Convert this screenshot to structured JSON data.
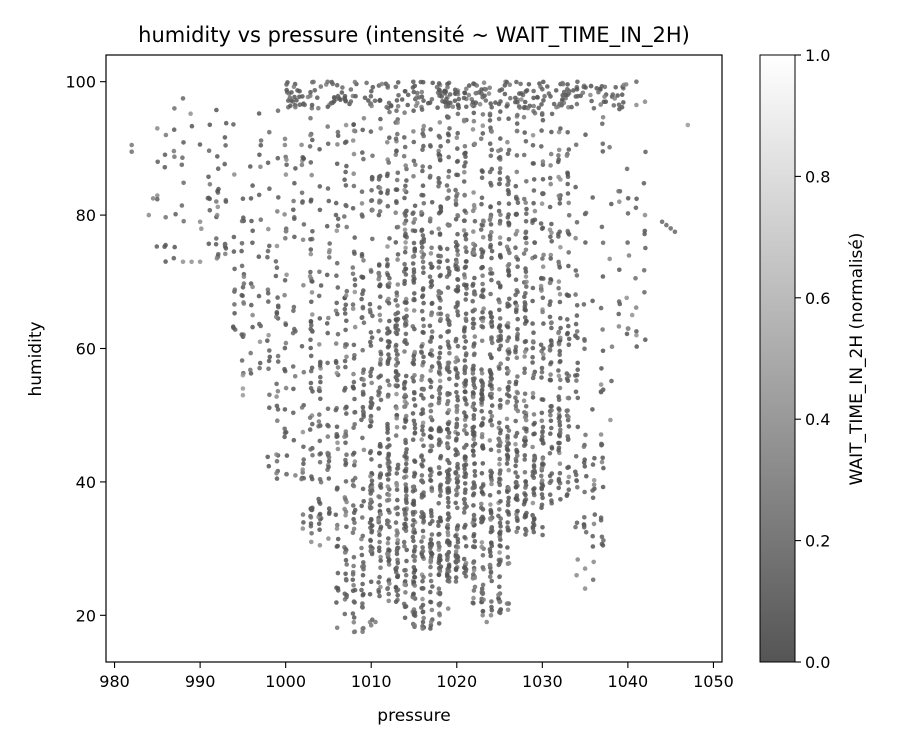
{
  "chart_data": {
    "type": "scatter",
    "title": "humidity vs pressure (intensité ~ WAIT_TIME_IN_2H)",
    "xlabel": "pressure",
    "ylabel": "humidity",
    "xlim": [
      979,
      1051
    ],
    "ylim": [
      13,
      104
    ],
    "xticks": [
      980,
      990,
      1000,
      1010,
      1020,
      1030,
      1040,
      1050
    ],
    "yticks": [
      20,
      40,
      60,
      80,
      100
    ],
    "grid": false,
    "colorbar": {
      "label": "WAIT_TIME_IN_2H (normalisé)",
      "range": [
        0,
        1
      ],
      "ticks": [
        0.0,
        0.2,
        0.4,
        0.6,
        0.8,
        1.0
      ],
      "tick_labels": [
        "0.0",
        "0.2",
        "0.4",
        "0.6",
        "0.8",
        "1.0"
      ],
      "color_low": "#555555",
      "color_high": "#ffffff"
    },
    "marker_alpha": 0.85,
    "density_profile": [
      {
        "x": 1008,
        "ymin": 17,
        "ymax": 100,
        "weight": 1.6
      },
      {
        "x": 1012,
        "ymin": 22,
        "ymax": 100,
        "weight": 2.4
      },
      {
        "x": 1016,
        "ymin": 18,
        "ymax": 100,
        "weight": 2.8
      },
      {
        "x": 1020,
        "ymin": 25,
        "ymax": 100,
        "weight": 3.0
      },
      {
        "x": 1024,
        "ymin": 20,
        "ymax": 100,
        "weight": 2.6
      },
      {
        "x": 1028,
        "ymin": 32,
        "ymax": 100,
        "weight": 2.0
      },
      {
        "x": 1032,
        "ymin": 36,
        "ymax": 100,
        "weight": 1.4
      },
      {
        "x": 1004,
        "ymin": 32,
        "ymax": 99,
        "weight": 1.0
      },
      {
        "x": 1000,
        "ymin": 40,
        "ymax": 98,
        "weight": 0.6
      },
      {
        "x": 996,
        "ymin": 55,
        "ymax": 97,
        "weight": 0.4
      },
      {
        "x": 1036,
        "ymin": 25,
        "ymax": 100,
        "weight": 0.5
      },
      {
        "x": 992,
        "ymin": 73,
        "ymax": 97,
        "weight": 0.25
      },
      {
        "x": 987,
        "ymin": 73,
        "ymax": 97,
        "weight": 0.15
      },
      {
        "x": 1040,
        "ymin": 60,
        "ymax": 100,
        "weight": 0.2
      }
    ],
    "points": [
      {
        "x": 982,
        "y": 90.5,
        "v": 0.2
      },
      {
        "x": 982,
        "y": 89.5,
        "v": 0.15
      },
      {
        "x": 984,
        "y": 80,
        "v": 0.3
      },
      {
        "x": 984.5,
        "y": 82.5,
        "v": 0.25
      },
      {
        "x": 985,
        "y": 93,
        "v": 0.3
      },
      {
        "x": 986,
        "y": 92,
        "v": 0.2
      },
      {
        "x": 987,
        "y": 96,
        "v": 0.15
      },
      {
        "x": 988,
        "y": 97.5,
        "v": 0.1
      },
      {
        "x": 988,
        "y": 73,
        "v": 0.35
      },
      {
        "x": 989,
        "y": 73,
        "v": 0.35
      },
      {
        "x": 990,
        "y": 73,
        "v": 0.35
      },
      {
        "x": 990,
        "y": 79,
        "v": 0.3
      },
      {
        "x": 992,
        "y": 80,
        "v": 0.3
      },
      {
        "x": 995,
        "y": 54,
        "v": 0.4
      },
      {
        "x": 995,
        "y": 53,
        "v": 0.4
      },
      {
        "x": 995,
        "y": 56,
        "v": 0.4
      },
      {
        "x": 998,
        "y": 62,
        "v": 0.35
      },
      {
        "x": 997,
        "y": 61,
        "v": 0.35
      },
      {
        "x": 1002,
        "y": 33,
        "v": 0.3
      },
      {
        "x": 1003,
        "y": 31,
        "v": 0.3
      },
      {
        "x": 1004,
        "y": 30.5,
        "v": 0.3
      },
      {
        "x": 1005,
        "y": 31.5,
        "v": 0.3
      },
      {
        "x": 1006,
        "y": 33,
        "v": 0.3
      },
      {
        "x": 1007,
        "y": 35,
        "v": 0.3
      },
      {
        "x": 1008,
        "y": 17.5,
        "v": 0.2
      },
      {
        "x": 1009,
        "y": 18,
        "v": 0.2
      },
      {
        "x": 1010,
        "y": 18.5,
        "v": 0.2
      },
      {
        "x": 1010.5,
        "y": 19,
        "v": 0.2
      },
      {
        "x": 1016,
        "y": 18,
        "v": 0.25
      },
      {
        "x": 1017,
        "y": 19,
        "v": 0.25
      },
      {
        "x": 1018,
        "y": 20,
        "v": 0.25
      },
      {
        "x": 1019,
        "y": 21,
        "v": 0.25
      },
      {
        "x": 1023.5,
        "y": 19,
        "v": 0.25
      },
      {
        "x": 1024,
        "y": 20,
        "v": 0.25
      },
      {
        "x": 1025,
        "y": 22,
        "v": 0.25
      },
      {
        "x": 1034,
        "y": 26,
        "v": 0.3
      },
      {
        "x": 1035,
        "y": 27,
        "v": 0.3
      },
      {
        "x": 1035,
        "y": 24,
        "v": 0.3
      },
      {
        "x": 1036,
        "y": 28,
        "v": 0.3
      },
      {
        "x": 1040,
        "y": 63,
        "v": 0.35
      },
      {
        "x": 1041,
        "y": 62,
        "v": 0.35
      },
      {
        "x": 1040.5,
        "y": 65,
        "v": 0.35
      },
      {
        "x": 1044,
        "y": 79,
        "v": 0.1
      },
      {
        "x": 1044.5,
        "y": 78.5,
        "v": 0.1
      },
      {
        "x": 1045,
        "y": 78,
        "v": 0.1
      },
      {
        "x": 1045.5,
        "y": 77.5,
        "v": 0.1
      },
      {
        "x": 1047,
        "y": 93.5,
        "v": 0.4
      },
      {
        "x": 1041,
        "y": 96.5,
        "v": 0.3
      },
      {
        "x": 1042,
        "y": 97,
        "v": 0.3
      },
      {
        "x": 1039,
        "y": 82,
        "v": 0.3
      },
      {
        "x": 1042,
        "y": 80,
        "v": 0.3
      },
      {
        "x": 1041,
        "y": 100,
        "v": 0.1
      }
    ]
  }
}
